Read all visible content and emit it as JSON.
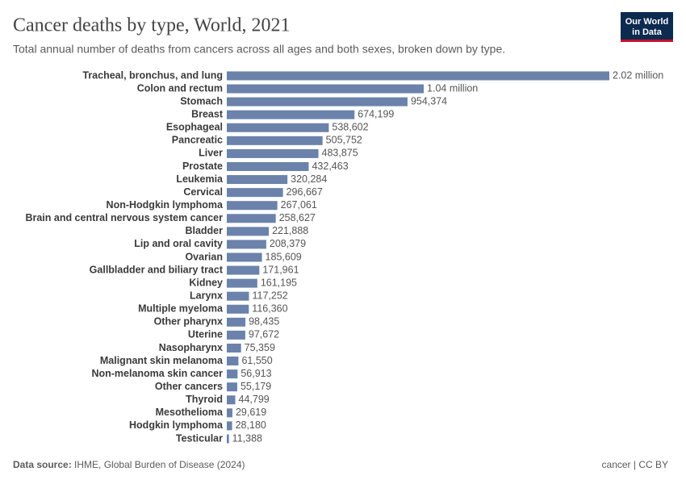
{
  "chart_data": {
    "type": "bar",
    "title": "Cancer deaths by type, World, 2021",
    "subtitle": "Total annual number of deaths from cancers across all ages and both sexes, broken down by type.",
    "categories": [
      "Tracheal, bronchus, and lung",
      "Colon and rectum",
      "Stomach",
      "Breast",
      "Esophageal",
      "Pancreatic",
      "Liver",
      "Prostate",
      "Leukemia",
      "Cervical",
      "Non-Hodgkin lymphoma",
      "Brain and central nervous system cancer",
      "Bladder",
      "Lip and oral cavity",
      "Ovarian",
      "Gallbladder and biliary tract",
      "Kidney",
      "Larynx",
      "Multiple myeloma",
      "Other pharynx",
      "Uterine",
      "Nasopharynx",
      "Malignant skin melanoma",
      "Non-melanoma skin cancer",
      "Other cancers",
      "Thyroid",
      "Mesothelioma",
      "Hodgkin lymphoma",
      "Testicular"
    ],
    "values": [
      2020000,
      1040000,
      954374,
      674199,
      538602,
      505752,
      483875,
      432463,
      320284,
      296667,
      267061,
      258627,
      221888,
      208379,
      185609,
      171961,
      161195,
      117252,
      116360,
      98435,
      97672,
      75359,
      61550,
      56913,
      55179,
      44799,
      29619,
      28180,
      11388
    ],
    "value_labels": [
      "2.02 million",
      "1.04 million",
      "954,374",
      "674,199",
      "538,602",
      "505,752",
      "483,875",
      "432,463",
      "320,284",
      "296,667",
      "267,061",
      "258,627",
      "221,888",
      "208,379",
      "185,609",
      "171,961",
      "161,195",
      "117,252",
      "116,360",
      "98,435",
      "97,672",
      "75,359",
      "61,550",
      "56,913",
      "55,179",
      "44,799",
      "29,619",
      "28,180",
      "11,388"
    ],
    "color": "#6b82ab",
    "source_label": "Data source:",
    "source": "IHME, Global Burden of Disease (2024)",
    "license": "cancer | CC BY",
    "logo": [
      "Our World",
      "in Data"
    ]
  }
}
